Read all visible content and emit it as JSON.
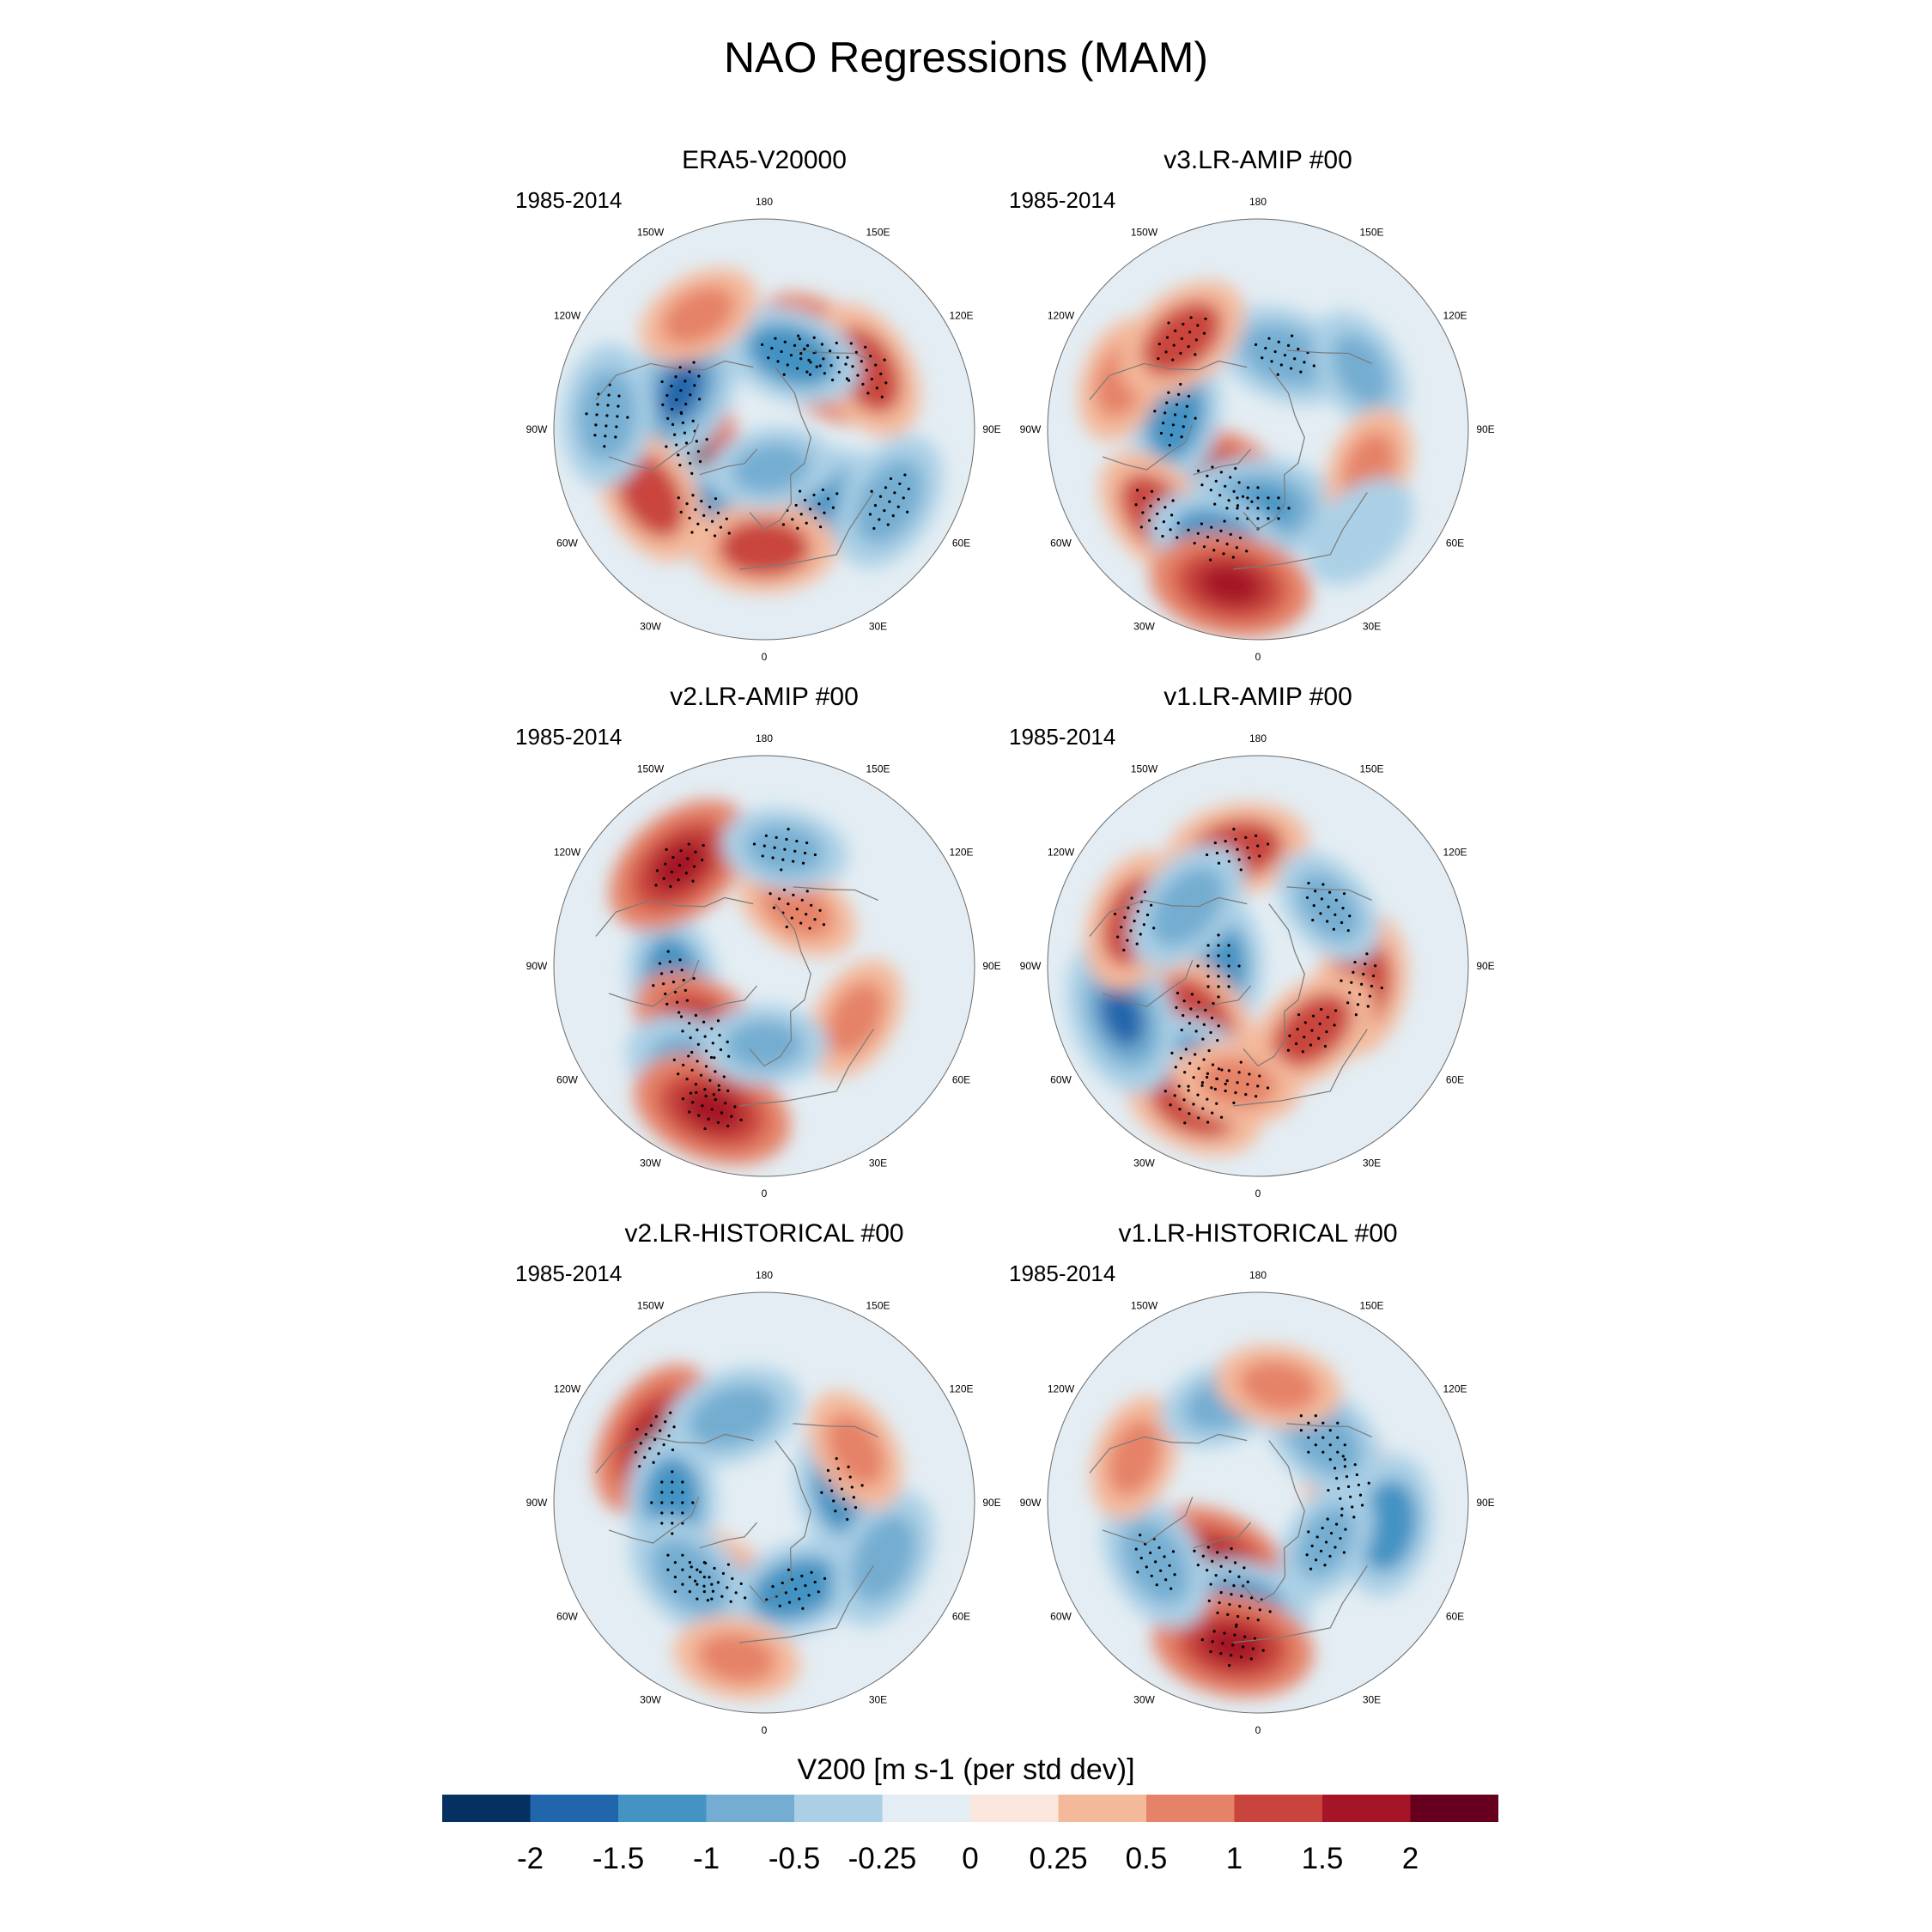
{
  "title": "NAO Regressions (MAM)",
  "lon_labels": [
    "180",
    "150E",
    "120E",
    "90E",
    "60E",
    "30E",
    "0",
    "30W",
    "60W",
    "90W",
    "120W",
    "150W"
  ],
  "colors": {
    "scale": [
      "#053061",
      "#2166ac",
      "#4393c3",
      "#74add1",
      "#abd0e6",
      "#e3edf3",
      "#fbe6dd",
      "#f4b99b",
      "#e58267",
      "#c9443d",
      "#a51427",
      "#67001f"
    ],
    "land_outline": "#7a7a7a",
    "stipple": "#000000"
  },
  "chart_data": {
    "type": "polar-stereographic contour maps",
    "variable": "V200 [m s-1 (per std dev)]",
    "levels": [
      "-2",
      "-1.5",
      "-1",
      "-0.5",
      "-0.25",
      "0",
      "0.25",
      "0.5",
      "1",
      "1.5",
      "2"
    ],
    "panels": [
      {
        "title": "ERA5-V20000",
        "period": "1985-2014",
        "anomalies": [
          {
            "lon": -80,
            "lat": 60,
            "v": 2.0,
            "sig": true
          },
          {
            "lon": -115,
            "lat": 55,
            "v": -1.6,
            "sig": true
          },
          {
            "lon": -35,
            "lat": 50,
            "v": -1.3,
            "sig": true
          },
          {
            "lon": -60,
            "lat": 40,
            "v": 1.0,
            "sig": false
          },
          {
            "lon": -95,
            "lat": 30,
            "v": -1.0,
            "sig": true
          },
          {
            "lon": 140,
            "lat": 55,
            "v": 1.5,
            "sig": true
          },
          {
            "lon": 120,
            "lat": 45,
            "v": 1.0,
            "sig": true
          },
          {
            "lon": 160,
            "lat": 60,
            "v": -1.2,
            "sig": true
          },
          {
            "lon": 30,
            "lat": 55,
            "v": -1.5,
            "sig": true
          },
          {
            "lon": 0,
            "lat": 45,
            "v": 1.0,
            "sig": false
          },
          {
            "lon": 60,
            "lat": 35,
            "v": -1.0,
            "sig": true
          },
          {
            "lon": -150,
            "lat": 40,
            "v": 0.6,
            "sig": false
          },
          {
            "lon": 10,
            "lat": 75,
            "v": -0.6,
            "sig": false
          }
        ]
      },
      {
        "title": "v3.LR-AMIP  #00",
        "period": "1985-2014",
        "anomalies": [
          {
            "lon": -30,
            "lat": 65,
            "v": 1.8,
            "sig": true
          },
          {
            "lon": 0,
            "lat": 60,
            "v": -1.5,
            "sig": true
          },
          {
            "lon": -100,
            "lat": 58,
            "v": -1.3,
            "sig": true
          },
          {
            "lon": -50,
            "lat": 40,
            "v": 1.2,
            "sig": true
          },
          {
            "lon": -20,
            "lat": 45,
            "v": -1.3,
            "sig": true
          },
          {
            "lon": -110,
            "lat": 35,
            "v": 0.8,
            "sig": false
          },
          {
            "lon": 160,
            "lat": 60,
            "v": -1.0,
            "sig": true
          },
          {
            "lon": 120,
            "lat": 45,
            "v": -0.7,
            "sig": false
          },
          {
            "lon": -140,
            "lat": 45,
            "v": 1.0,
            "sig": true
          },
          {
            "lon": 70,
            "lat": 45,
            "v": 0.8,
            "sig": false
          },
          {
            "lon": -10,
            "lat": 30,
            "v": 1.5,
            "sig": false
          },
          {
            "lon": 45,
            "lat": 35,
            "v": -0.5,
            "sig": false
          }
        ]
      },
      {
        "title": "v2.LR-AMIP  #00",
        "period": "1985-2014",
        "anomalies": [
          {
            "lon": -80,
            "lat": 55,
            "v": -1.3,
            "sig": true
          },
          {
            "lon": -40,
            "lat": 55,
            "v": 1.6,
            "sig": true
          },
          {
            "lon": -30,
            "lat": 42,
            "v": -1.8,
            "sig": true
          },
          {
            "lon": -20,
            "lat": 32,
            "v": 1.8,
            "sig": true
          },
          {
            "lon": -140,
            "lat": 40,
            "v": 1.5,
            "sig": true
          },
          {
            "lon": 150,
            "lat": 65,
            "v": 0.8,
            "sig": true
          },
          {
            "lon": 170,
            "lat": 45,
            "v": -0.8,
            "sig": true
          },
          {
            "lon": 60,
            "lat": 50,
            "v": 0.8,
            "sig": false
          },
          {
            "lon": 0,
            "lat": 60,
            "v": -0.6,
            "sig": false
          }
        ]
      },
      {
        "title": "v1.LR-AMIP  #00",
        "period": "1985-2014",
        "anomalies": [
          {
            "lon": -90,
            "lat": 75,
            "v": -1.2,
            "sig": true
          },
          {
            "lon": -50,
            "lat": 60,
            "v": 1.2,
            "sig": true
          },
          {
            "lon": -30,
            "lat": 45,
            "v": -1.2,
            "sig": true
          },
          {
            "lon": -25,
            "lat": 32,
            "v": 1.3,
            "sig": true
          },
          {
            "lon": -70,
            "lat": 35,
            "v": -1.8,
            "sig": false
          },
          {
            "lon": -110,
            "lat": 40,
            "v": 1.3,
            "sig": true
          },
          {
            "lon": 80,
            "lat": 50,
            "v": 1.3,
            "sig": true
          },
          {
            "lon": 40,
            "lat": 58,
            "v": 1.0,
            "sig": true
          },
          {
            "lon": -170,
            "lat": 45,
            "v": 1.2,
            "sig": true
          },
          {
            "lon": -130,
            "lat": 55,
            "v": -1.0,
            "sig": false
          },
          {
            "lon": 130,
            "lat": 55,
            "v": -0.8,
            "sig": true
          },
          {
            "lon": -10,
            "lat": 45,
            "v": 0.9,
            "sig": true
          }
        ]
      },
      {
        "title": "v2.LR-HISTORICAL  #00",
        "period": "1985-2014",
        "anomalies": [
          {
            "lon": -120,
            "lat": 42,
            "v": 1.7,
            "sig": true
          },
          {
            "lon": -90,
            "lat": 55,
            "v": -1.2,
            "sig": true
          },
          {
            "lon": -30,
            "lat": 55,
            "v": 1.2,
            "sig": true
          },
          {
            "lon": 20,
            "lat": 55,
            "v": -1.3,
            "sig": true
          },
          {
            "lon": -45,
            "lat": 50,
            "v": -1.0,
            "sig": true
          },
          {
            "lon": 100,
            "lat": 60,
            "v": -1.2,
            "sig": true
          },
          {
            "lon": 65,
            "lat": 40,
            "v": -1.0,
            "sig": false
          },
          {
            "lon": -160,
            "lat": 55,
            "v": -1.0,
            "sig": false
          },
          {
            "lon": -10,
            "lat": 30,
            "v": 0.8,
            "sig": false
          },
          {
            "lon": 120,
            "lat": 50,
            "v": 0.6,
            "sig": false
          }
        ]
      },
      {
        "title": "v1.LR-HISTORICAL  #00",
        "period": "1985-2014",
        "anomalies": [
          {
            "lon": -30,
            "lat": 62,
            "v": 1.8,
            "sig": true
          },
          {
            "lon": -10,
            "lat": 50,
            "v": -1.4,
            "sig": true
          },
          {
            "lon": -10,
            "lat": 35,
            "v": 1.5,
            "sig": true
          },
          {
            "lon": -60,
            "lat": 45,
            "v": -1.0,
            "sig": true
          },
          {
            "lon": 100,
            "lat": 55,
            "v": 1.3,
            "sig": true
          },
          {
            "lon": 135,
            "lat": 55,
            "v": -1.0,
            "sig": true
          },
          {
            "lon": 80,
            "lat": 40,
            "v": -1.3,
            "sig": false
          },
          {
            "lon": 60,
            "lat": 60,
            "v": -0.6,
            "sig": true
          },
          {
            "lon": -110,
            "lat": 40,
            "v": 0.6,
            "sig": false
          },
          {
            "lon": -160,
            "lat": 50,
            "v": -0.8,
            "sig": false
          },
          {
            "lon": 170,
            "lat": 45,
            "v": 0.7,
            "sig": false
          }
        ]
      }
    ]
  },
  "colorbar": {
    "title": "V200 [m s-1 (per std dev)]",
    "tick_labels": [
      "-2",
      "-1.5",
      "-1",
      "-0.5",
      "-0.25",
      "0",
      "0.25",
      "0.5",
      "1",
      "1.5",
      "2"
    ]
  }
}
